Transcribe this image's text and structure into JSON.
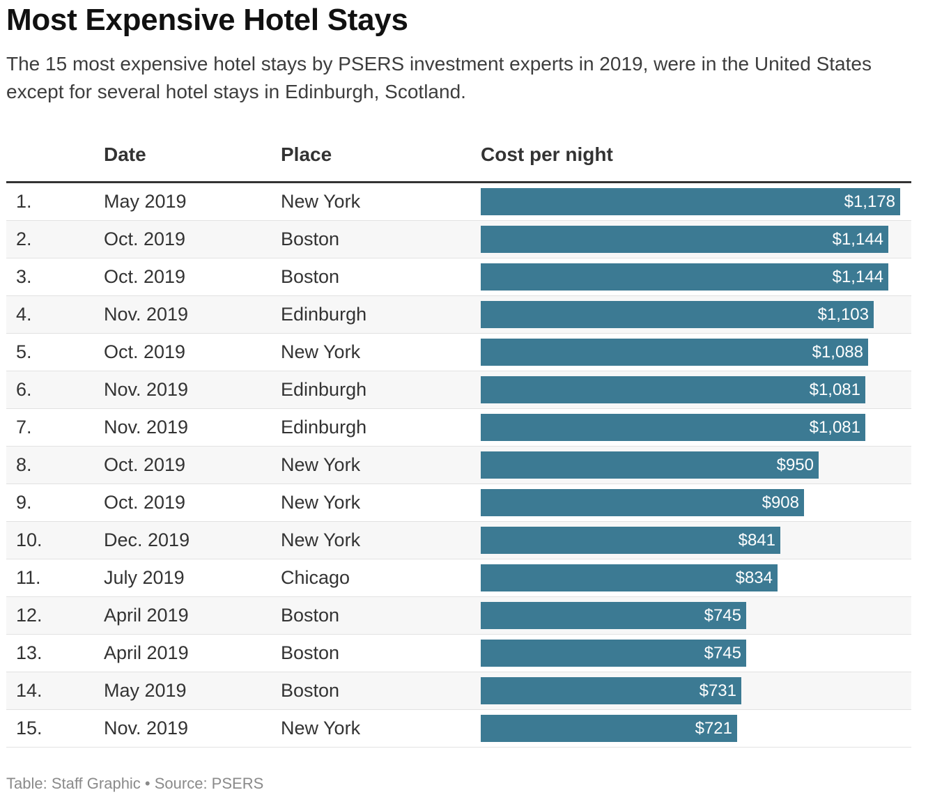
{
  "chart_data": {
    "type": "table",
    "title": "Most Expensive Hotel Stays",
    "subtitle": "The 15 most expensive hotel stays by PSERS investment experts in 2019, were in the United States except for several hotel stays in Edinburgh, Scotland.",
    "columns": [
      "",
      "Date",
      "Place",
      "Cost per night"
    ],
    "bar_color": "#3c7a93",
    "rows": [
      {
        "rank": "1.",
        "date": "May 2019",
        "place": "New York",
        "cost": 1178,
        "cost_label": "$1,178"
      },
      {
        "rank": "2.",
        "date": "Oct. 2019",
        "place": "Boston",
        "cost": 1144,
        "cost_label": "$1,144"
      },
      {
        "rank": "3.",
        "date": "Oct. 2019",
        "place": "Boston",
        "cost": 1144,
        "cost_label": "$1,144"
      },
      {
        "rank": "4.",
        "date": "Nov. 2019",
        "place": "Edinburgh",
        "cost": 1103,
        "cost_label": "$1,103"
      },
      {
        "rank": "5.",
        "date": "Oct. 2019",
        "place": "New York",
        "cost": 1088,
        "cost_label": "$1,088"
      },
      {
        "rank": "6.",
        "date": "Nov. 2019",
        "place": "Edinburgh",
        "cost": 1081,
        "cost_label": "$1,081"
      },
      {
        "rank": "7.",
        "date": "Nov. 2019",
        "place": "Edinburgh",
        "cost": 1081,
        "cost_label": "$1,081"
      },
      {
        "rank": "8.",
        "date": "Oct. 2019",
        "place": "New York",
        "cost": 950,
        "cost_label": "$950"
      },
      {
        "rank": "9.",
        "date": "Oct. 2019",
        "place": "New York",
        "cost": 908,
        "cost_label": "$908"
      },
      {
        "rank": "10.",
        "date": "Dec. 2019",
        "place": "New York",
        "cost": 841,
        "cost_label": "$841"
      },
      {
        "rank": "11.",
        "date": "July 2019",
        "place": "Chicago",
        "cost": 834,
        "cost_label": "$834"
      },
      {
        "rank": "12.",
        "date": "April 2019",
        "place": "Boston",
        "cost": 745,
        "cost_label": "$745"
      },
      {
        "rank": "13.",
        "date": "April 2019",
        "place": "Boston",
        "cost": 745,
        "cost_label": "$745"
      },
      {
        "rank": "14.",
        "date": "May 2019",
        "place": "Boston",
        "cost": 731,
        "cost_label": "$731"
      },
      {
        "rank": "15.",
        "date": "Nov. 2019",
        "place": "New York",
        "cost": 721,
        "cost_label": "$721"
      }
    ]
  },
  "footer": "Table: Staff Graphic • Source: PSERS"
}
